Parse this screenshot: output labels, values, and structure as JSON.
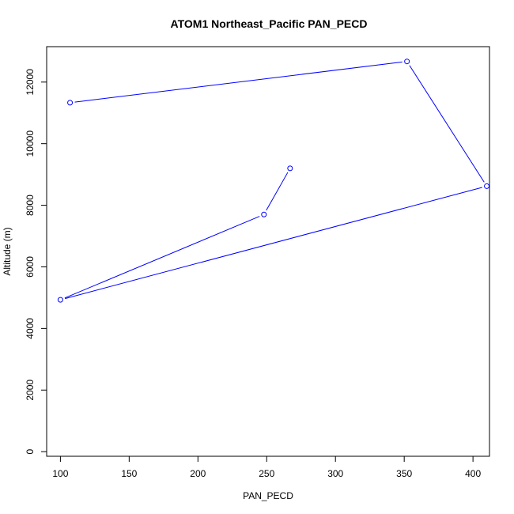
{
  "chart_data": {
    "type": "line",
    "title": "ATOM1 Northeast_Pacific PAN_PECD",
    "xlabel": "PAN_PECD",
    "ylabel": "Altitude (m)",
    "xlim": [
      90,
      412
    ],
    "ylim": [
      -150,
      13150
    ],
    "x_ticks": [
      100,
      150,
      200,
      250,
      300,
      350,
      400
    ],
    "x_tick_labels": [
      "100",
      "150",
      "200",
      "250",
      "300",
      "350",
      "400"
    ],
    "y_ticks": [
      0,
      2000,
      4000,
      6000,
      8000,
      10000,
      12000
    ],
    "y_tick_labels": [
      "0",
      "2000",
      "4000",
      "6000",
      "8000",
      "10000",
      "12000"
    ],
    "grid": false,
    "series": [
      {
        "color": "#0000ff",
        "marker": "open-circle",
        "x": [
          267,
          248,
          100,
          410,
          352,
          107
        ],
        "y": [
          9200,
          7700,
          4930,
          8620,
          12670,
          11330
        ]
      }
    ]
  }
}
